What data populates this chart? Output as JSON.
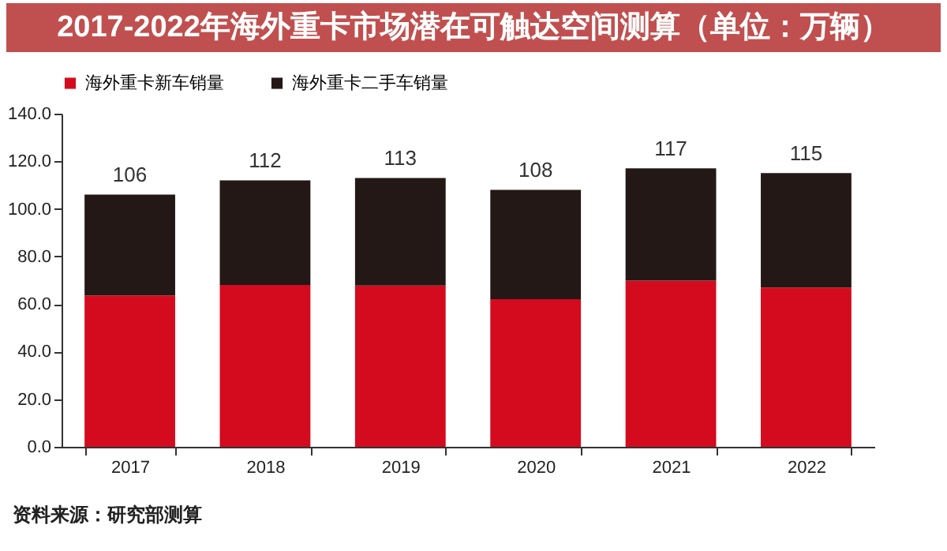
{
  "chart_data": {
    "type": "bar",
    "title": "2017-2022年海外重卡市场潜在可触达空间测算（单位：万辆）",
    "categories": [
      "2017",
      "2018",
      "2019",
      "2020",
      "2021",
      "2022"
    ],
    "stacked": true,
    "series": [
      {
        "name": "海外重卡新车销量",
        "color": "#d40b1e",
        "values": [
          63.6,
          68.0,
          67.8,
          62.0,
          69.8,
          66.9
        ]
      },
      {
        "name": "海外重卡二手车销量",
        "color": "#231815",
        "values": [
          42.4,
          44.0,
          45.2,
          46.0,
          47.2,
          48.1
        ]
      }
    ],
    "totals": [
      "106",
      "112",
      "113",
      "108",
      "117",
      "115"
    ],
    "ylim": [
      0,
      140
    ],
    "yticks": [
      {
        "value": 0,
        "label": "0.0"
      },
      {
        "value": 20,
        "label": "20.0"
      },
      {
        "value": 40,
        "label": "40.0"
      },
      {
        "value": 60,
        "label": "60.0"
      },
      {
        "value": 80,
        "label": "80.0"
      },
      {
        "value": 100,
        "label": "100.0"
      },
      {
        "value": 120,
        "label": "120.0"
      },
      {
        "value": 140,
        "label": "140.0"
      }
    ],
    "grid": false,
    "legend": "top",
    "annotations": [
      "资料来源：研究部测算"
    ]
  }
}
